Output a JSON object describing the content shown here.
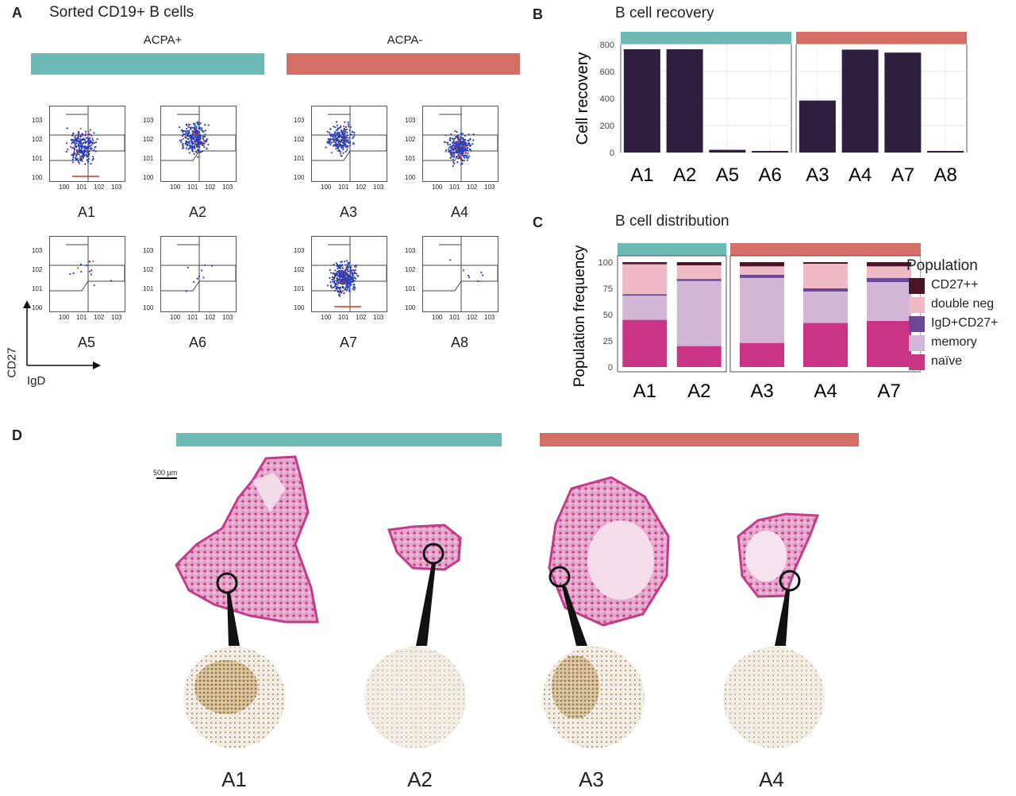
{
  "panel_a": {
    "label": "A",
    "title": "Sorted CD19+ B cells",
    "group_pos": "ACPA+",
    "group_neg": "ACPA-",
    "axis_y": "CD27",
    "axis_x": "IgD",
    "plots": [
      "A1",
      "A2",
      "A3",
      "A4",
      "A5",
      "A6",
      "A7",
      "A8"
    ],
    "tick_labels": [
      "10^0",
      "10^1",
      "10^2",
      "10^3"
    ]
  },
  "panel_b": {
    "label": "B",
    "title": "B cell recovery"
  },
  "panel_c": {
    "label": "C",
    "title": "B cell distribution"
  },
  "panel_d": {
    "label": "D",
    "scale_bar": "500 µm",
    "samples": [
      "A1",
      "A2",
      "A3",
      "A4"
    ]
  },
  "colors": {
    "acpa_pos": "#6cb9b5",
    "acpa_neg": "#d46f66",
    "bar_dark": "#2f1f3f",
    "cd27pp": "#4a1625",
    "double_neg": "#f0b9c6",
    "igd_cd27": "#6a4896",
    "memory": "#d3b6d5",
    "naive": "#c93485",
    "stain": "#d74a9a"
  },
  "chart_data": [
    {
      "type": "bar",
      "title": "B cell recovery",
      "ylabel": "Cell recovery",
      "ylim": [
        0,
        800
      ],
      "yticks": [
        0,
        200,
        400,
        600,
        800
      ],
      "facets": [
        {
          "group": "ACPA+",
          "categories": [
            "A1",
            "A2",
            "A5",
            "A6"
          ],
          "values": [
            765,
            765,
            20,
            12
          ]
        },
        {
          "group": "ACPA-",
          "categories": [
            "A3",
            "A4",
            "A7",
            "A8"
          ],
          "values": [
            385,
            762,
            740,
            12
          ]
        }
      ]
    },
    {
      "type": "bar",
      "stacked": true,
      "title": "B cell distribution",
      "ylabel": "Population frequency",
      "ylim": [
        0,
        100
      ],
      "yticks": [
        0,
        25,
        50,
        75,
        100
      ],
      "legend_title": "Population",
      "legend": [
        "CD27++",
        "double neg",
        "IgD+CD27+",
        "memory",
        "naïve"
      ],
      "facets": [
        {
          "group": "ACPA+",
          "categories": [
            "A1",
            "A2"
          ],
          "series": [
            {
              "name": "naïve",
              "values": [
                45,
                20
              ]
            },
            {
              "name": "memory",
              "values": [
                23,
                62
              ]
            },
            {
              "name": "IgD+CD27+",
              "values": [
                1.5,
                2
              ]
            },
            {
              "name": "double neg",
              "values": [
                28.5,
                13
              ]
            },
            {
              "name": "CD27++",
              "values": [
                2,
                3
              ]
            }
          ]
        },
        {
          "group": "ACPA-",
          "categories": [
            "A3",
            "A4",
            "A7"
          ],
          "series": [
            {
              "name": "naïve",
              "values": [
                23,
                42,
                44
              ]
            },
            {
              "name": "memory",
              "values": [
                62,
                30,
                37
              ]
            },
            {
              "name": "IgD+CD27+",
              "values": [
                3,
                3,
                4
              ]
            },
            {
              "name": "double neg",
              "values": [
                8,
                23.5,
                11
              ]
            },
            {
              "name": "CD27++",
              "values": [
                4,
                1.5,
                4
              ]
            }
          ]
        }
      ]
    }
  ]
}
